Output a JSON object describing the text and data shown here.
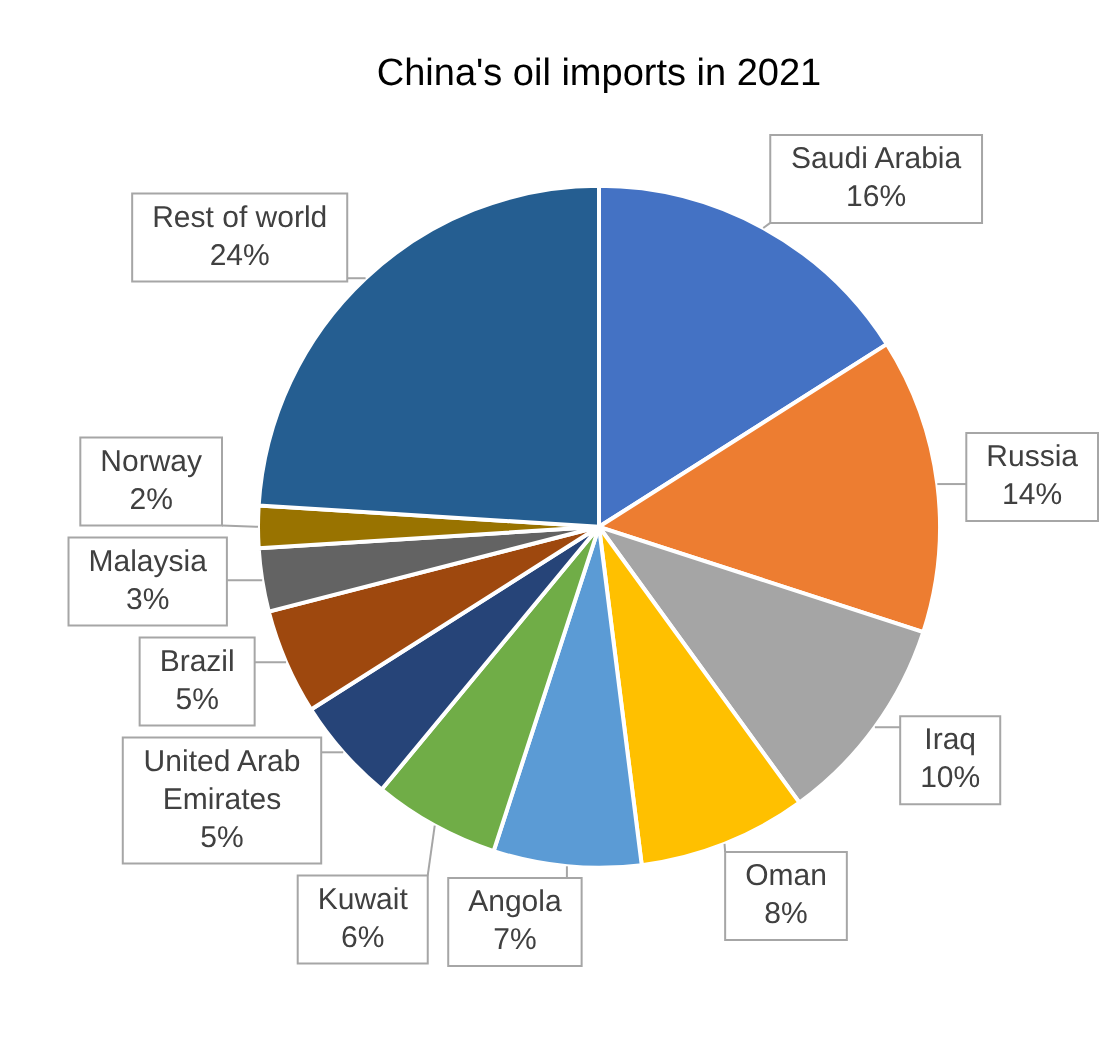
{
  "chart_data": {
    "type": "pie",
    "title": "China's oil imports in 2021",
    "categories": [
      "Saudi Arabia",
      "Russia",
      "Iraq",
      "Oman",
      "Angola",
      "Kuwait",
      "United Arab Emirates",
      "Brazil",
      "Malaysia",
      "Norway",
      "Rest of world"
    ],
    "values": [
      16,
      14,
      10,
      8,
      7,
      6,
      5,
      5,
      3,
      2,
      24
    ],
    "value_labels": [
      "16%",
      "14%",
      "10%",
      "8%",
      "7%",
      "6%",
      "5%",
      "5%",
      "3%",
      "2%",
      "24%"
    ],
    "colors": [
      "#4472c4",
      "#ed7d31",
      "#a5a5a5",
      "#ffc000",
      "#5b9bd5",
      "#70ad47",
      "#264478",
      "#9e480e",
      "#636363",
      "#997300",
      "#255e91"
    ],
    "legend": false
  }
}
